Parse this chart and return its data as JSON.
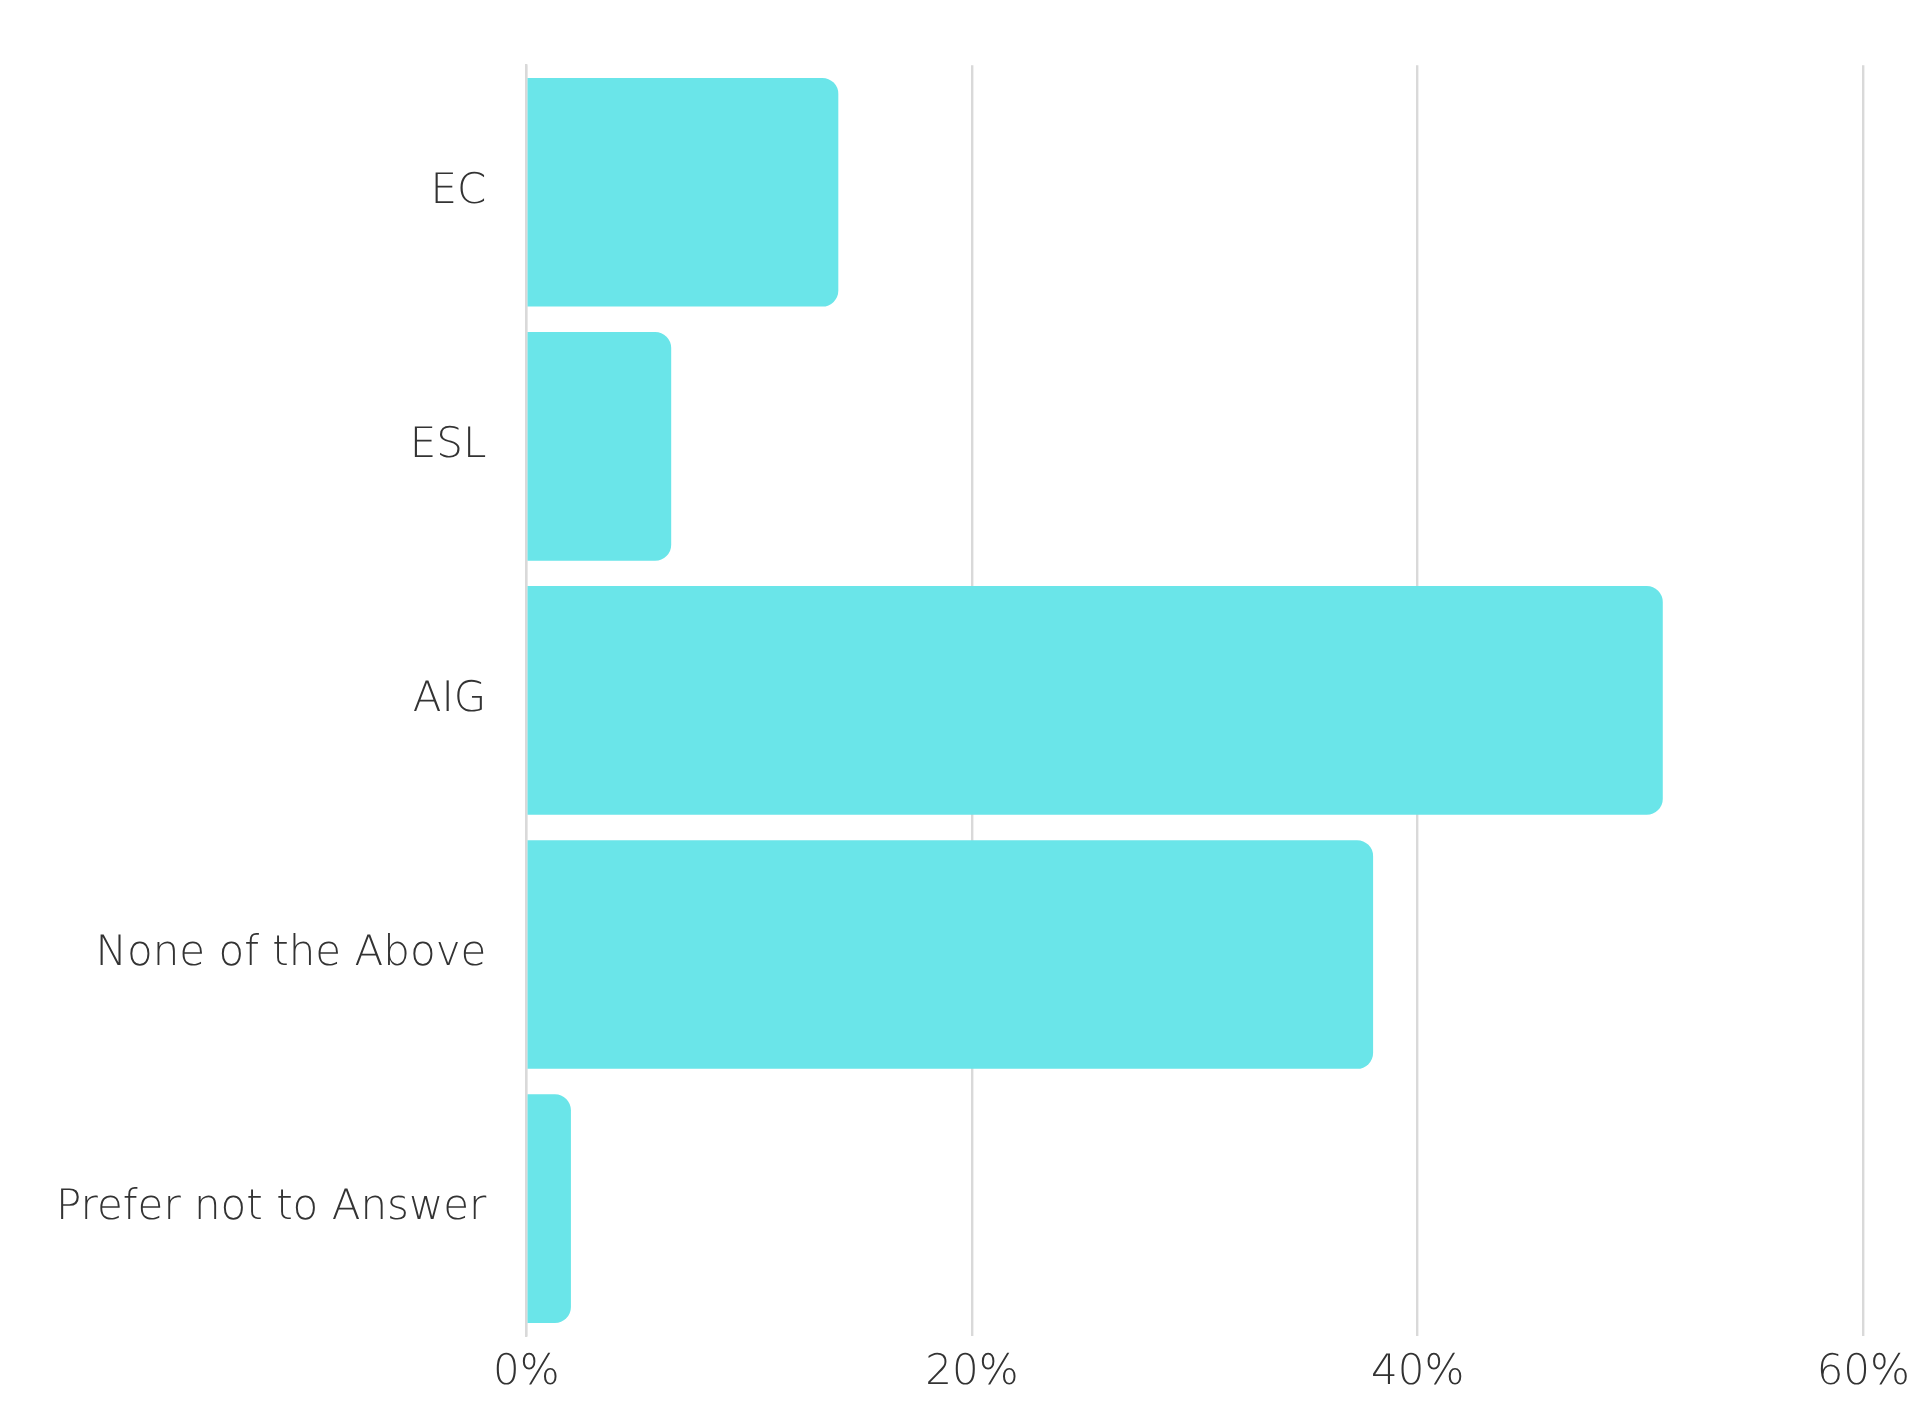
{
  "chart_data": {
    "type": "bar",
    "orientation": "horizontal",
    "categories": [
      "EC",
      "ESL",
      "AIG",
      "None of the Above",
      "Prefer not to Answer"
    ],
    "values": [
      14,
      6.5,
      51,
      38,
      2
    ],
    "color": "#6ae5e9",
    "xlim": [
      0,
      60
    ],
    "xticks": [
      {
        "value": 0,
        "label": "0%"
      },
      {
        "value": 20,
        "label": "20%"
      },
      {
        "value": 40,
        "label": "40%"
      },
      {
        "value": 60,
        "label": "60%"
      }
    ],
    "grid": "x",
    "legend": false
  }
}
